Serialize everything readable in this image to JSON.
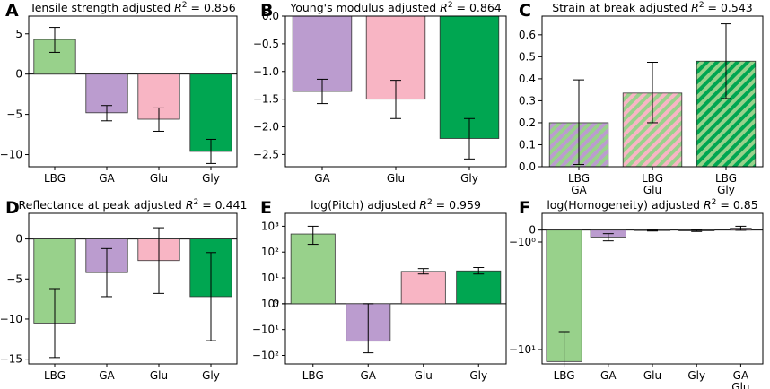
{
  "colors": {
    "LBG": "#98d18b",
    "GA": "#bb9ccf",
    "Glu": "#f8b5c4",
    "Gly": "#00a651",
    "GA_Glu_stripe": "#f8b5c4"
  },
  "chart_data": [
    {
      "id": "A",
      "letter": "A",
      "type": "bar",
      "title_prefix": "Tensile strength adjusted ",
      "r2_value": "0.856",
      "scale": "linear",
      "ylim": [
        -11.5,
        7.2
      ],
      "yticks": [
        5,
        0,
        -5,
        -10
      ],
      "ytick_labels": [
        "5",
        "0",
        "−5",
        "−10"
      ],
      "categories": [
        [
          "LBG"
        ],
        [
          "GA"
        ],
        [
          "Glu"
        ],
        [
          "Gly"
        ]
      ],
      "colors": [
        "LBG",
        "GA",
        "Glu",
        "Gly"
      ],
      "values": [
        4.3,
        -4.8,
        -5.6,
        -9.6
      ],
      "err_low": [
        2.7,
        -5.8,
        -7.1,
        -11.1
      ],
      "err_high": [
        5.8,
        -3.9,
        -4.2,
        -8.1
      ]
    },
    {
      "id": "B",
      "letter": "B",
      "type": "bar",
      "title_prefix": "Young's modulus adjusted ",
      "r2_value": "0.864",
      "scale": "linear",
      "ylim": [
        -2.72,
        0.0
      ],
      "yticks": [
        0,
        -0.5,
        -1,
        -1.5,
        -2,
        -2.5
      ],
      "ytick_labels": [
        "0.0",
        "−0.5",
        "−1.0",
        "−1.5",
        "−2.0",
        "−2.5"
      ],
      "categories": [
        [
          "GA"
        ],
        [
          "Glu"
        ],
        [
          "Gly"
        ]
      ],
      "colors": [
        "GA",
        "Glu",
        "Gly"
      ],
      "values": [
        -1.36,
        -1.5,
        -2.21
      ],
      "err_low": [
        -1.58,
        -1.85,
        -2.58
      ],
      "err_high": [
        -1.14,
        -1.16,
        -1.85
      ]
    },
    {
      "id": "C",
      "letter": "C",
      "type": "bar",
      "title_prefix": "Strain at break adjusted ",
      "r2_value": "0.543",
      "scale": "linear",
      "ylim": [
        0,
        0.685
      ],
      "yticks": [
        0,
        0.1,
        0.2,
        0.3,
        0.4,
        0.5,
        0.6
      ],
      "ytick_labels": [
        "0.0",
        "0.1",
        "0.2",
        "0.3",
        "0.4",
        "0.5",
        "0.6"
      ],
      "categories": [
        [
          "LBG",
          "GA"
        ],
        [
          "LBG",
          "Glu"
        ],
        [
          "LBG",
          "Gly"
        ]
      ],
      "colors": [
        "GA",
        "Glu",
        "Gly"
      ],
      "hatch": true,
      "values": [
        0.2,
        0.335,
        0.48
      ],
      "err_low": [
        0.01,
        0.2,
        0.31
      ],
      "err_high": [
        0.395,
        0.475,
        0.65
      ]
    },
    {
      "id": "D",
      "letter": "D",
      "type": "bar",
      "title_prefix": "Reflectance at peak adjusted ",
      "r2_value": "0.441",
      "scale": "linear",
      "ylim": [
        -15.6,
        3.2
      ],
      "yticks": [
        0,
        -5,
        -10,
        -15
      ],
      "ytick_labels": [
        "0",
        "−5",
        "−10",
        "−15"
      ],
      "categories": [
        [
          "LBG"
        ],
        [
          "GA"
        ],
        [
          "Glu"
        ],
        [
          "Gly"
        ]
      ],
      "colors": [
        "LBG",
        "GA",
        "Glu",
        "Gly"
      ],
      "values": [
        -10.5,
        -4.2,
        -2.7,
        -7.2
      ],
      "err_low": [
        -14.8,
        -7.2,
        -6.8,
        -12.7
      ],
      "err_high": [
        -6.2,
        -1.2,
        1.4,
        -1.7
      ]
    },
    {
      "id": "E",
      "letter": "E",
      "type": "bar",
      "title_prefix": "log(Pitch) adjusted ",
      "r2_value": "0.959",
      "scale": "symlog",
      "ylim": [
        -2.33,
        3.5
      ],
      "yticks": [
        3,
        2,
        1,
        0,
        -1,
        -2
      ],
      "ytick_labels": [
        "10³",
        "10²",
        "10¹",
        "10⁰",
        "0",
        "−10¹",
        "−10²"
      ],
      "ytick_label_positions": [
        3,
        2,
        1,
        0,
        -1,
        -2
      ],
      "ylabels": [
        {
          "text": "10³",
          "y": 3
        },
        {
          "text": "10²",
          "y": 2
        },
        {
          "text": "10¹",
          "y": 1
        },
        {
          "text": "10⁰",
          "y": 0
        },
        {
          "text": "0",
          "y": 0.0
        },
        {
          "text": "−10¹",
          "y": -1
        },
        {
          "text": "−10²",
          "y": -2
        }
      ],
      "categories": [
        [
          "LBG"
        ],
        [
          "GA"
        ],
        [
          "Glu"
        ],
        [
          "Gly"
        ]
      ],
      "colors": [
        "LBG",
        "GA",
        "Glu",
        "Gly"
      ],
      "values": [
        2.7,
        -1.45,
        1.25,
        1.27
      ],
      "err_low": [
        2.3,
        -1.9,
        1.15,
        1.15
      ],
      "err_high": [
        3.0,
        0.0,
        1.36,
        1.4
      ]
    },
    {
      "id": "F",
      "letter": "F",
      "type": "bar",
      "title_prefix": "log(Homogeneity) adjusted ",
      "r2_value": "0.85",
      "scale": "symlog",
      "ylim": [
        -11.2,
        1.4
      ],
      "yticks": [
        0,
        -1,
        -10
      ],
      "ytick_labels": [
        "0",
        "−10⁰",
        "−10¹"
      ],
      "categories": [
        [
          "LBG"
        ],
        [
          "GA"
        ],
        [
          "Glu"
        ],
        [
          "Gly"
        ],
        [
          "GA",
          "Glu"
        ]
      ],
      "colors": [
        "LBG",
        "GA",
        "Glu",
        "Gly",
        "GA_Glu"
      ],
      "values": [
        -11.0,
        -0.58,
        -0.04,
        -0.06,
        0.15
      ],
      "err_low": [
        -15.0,
        -0.9,
        -0.08,
        -0.12,
        -0.02
      ],
      "err_high": [
        -8.5,
        -0.3,
        0.0,
        0.0,
        0.32
      ]
    }
  ]
}
